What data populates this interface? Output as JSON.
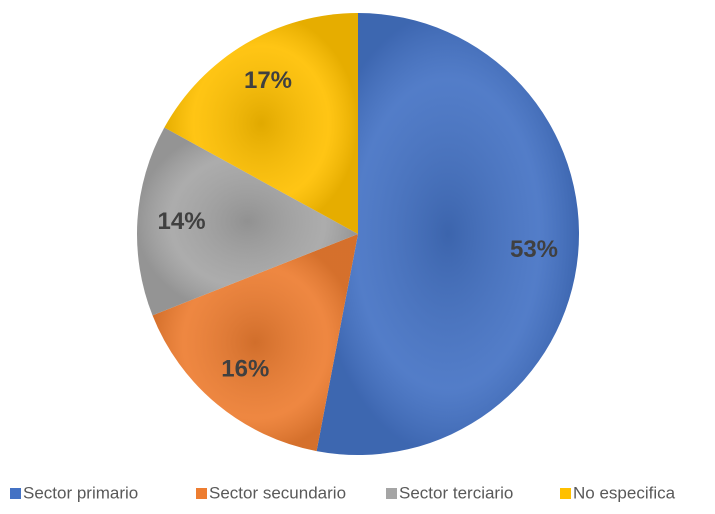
{
  "chart_data": {
    "type": "pie",
    "categories": [
      "Sector primario",
      "Sector secundario",
      "Sector terciario",
      "No especifica"
    ],
    "values": [
      53,
      16,
      14,
      17
    ],
    "value_labels": [
      "53%",
      "16%",
      "14%",
      "17%"
    ],
    "colors": [
      "#4472c4",
      "#ed7d31",
      "#a5a5a5",
      "#ffc000"
    ],
    "legend": "bottom"
  }
}
